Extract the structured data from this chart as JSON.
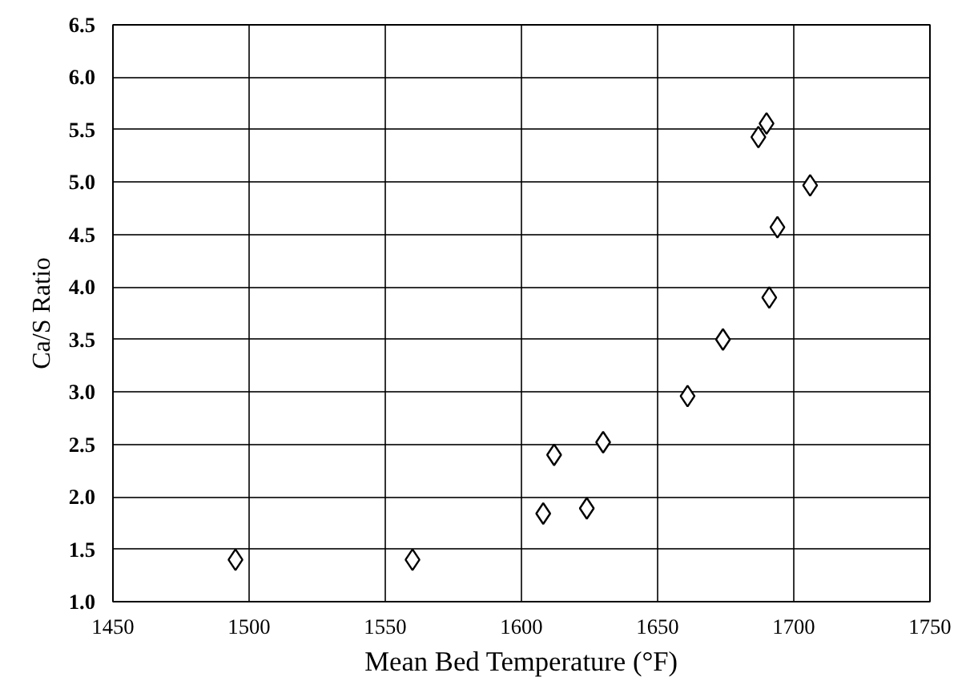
{
  "chart_data": {
    "type": "scatter",
    "xlabel": "Mean Bed Temperature (°F)",
    "ylabel": "Ca/S Ratio",
    "x": [
      1495,
      1560,
      1608,
      1612,
      1624,
      1630,
      1661,
      1674,
      1691,
      1694,
      1706,
      1687,
      1690
    ],
    "values": [
      1.4,
      1.4,
      1.84,
      2.4,
      1.89,
      2.52,
      2.96,
      3.5,
      3.9,
      4.57,
      4.97,
      5.43,
      5.56
    ],
    "color": "#000000",
    "marker": "diamond",
    "xlim": [
      1450,
      1750
    ],
    "xticks": [
      1450,
      1500,
      1550,
      1600,
      1650,
      1700,
      1750
    ],
    "ylim": [
      1.0,
      6.5
    ],
    "yticks": [
      {
        "value": 1.0,
        "label": "1.0"
      },
      {
        "value": 1.5,
        "label": "1.5"
      },
      {
        "value": 2.0,
        "label": "2.0"
      },
      {
        "value": 2.5,
        "label": "2.5"
      },
      {
        "value": 3.0,
        "label": "3.0"
      },
      {
        "value": 3.5,
        "label": "3.5"
      },
      {
        "value": 4.0,
        "label": "4.0"
      },
      {
        "value": 4.5,
        "label": "4.5"
      },
      {
        "value": 5.0,
        "label": "5.0"
      },
      {
        "value": 5.5,
        "label": "5.5"
      },
      {
        "value": 6.0,
        "label": "6.0"
      },
      {
        "value": 6.5,
        "label": "6.5"
      }
    ],
    "grid": true
  }
}
